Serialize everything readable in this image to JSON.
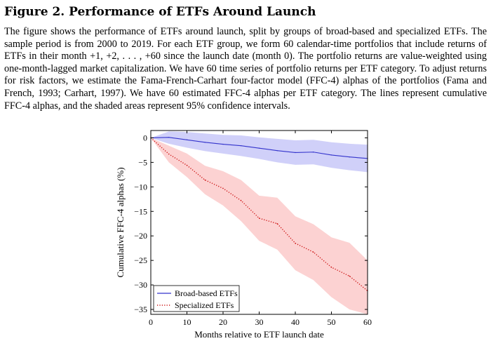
{
  "figure": {
    "title": "Figure 2. Performance of ETFs Around Launch",
    "caption": "The figure shows the performance of ETFs around launch, split by groups of broad-based and specialized ETFs. The sample period is from 2000 to 2019. For each ETF group, we form 60 calendar-time portfolios that include returns of ETFs in their month +1, +2, . . . , +60 since the launch date (month 0). The portfolio returns are value-weighted using one-month-lagged market capitalization. We have 60 time series of portfolio returns per ETF category. To adjust returns for risk factors, we estimate the Fama-French-Carhart four-factor model (FFC-4) alphas of the portfolios (Fama and French, 1993; Carhart, 1997). We have 60 estimated FFC-4 alphas per ETF category. The lines represent cumulative FFC-4 alphas, and the shaded areas represent 95% confidence intervals."
  },
  "chart_data": {
    "type": "line",
    "xlabel": "Months relative to ETF launch date",
    "ylabel": "Cumulative FFC-4 alphas (%)",
    "xlim": [
      0,
      60
    ],
    "ylim": [
      -36,
      1.5
    ],
    "xticks": [
      0,
      10,
      20,
      30,
      40,
      50,
      60
    ],
    "yticks": [
      0,
      -5,
      -10,
      -15,
      -20,
      -25,
      -30,
      -35
    ],
    "legend_position": "bottom-left",
    "x": [
      0,
      5,
      10,
      15,
      20,
      25,
      30,
      35,
      40,
      45,
      50,
      55,
      60
    ],
    "series": [
      {
        "name": "Broad-based ETFs",
        "color": "#3333cc",
        "band_color": "#c8c8f8",
        "style": "solid",
        "values": [
          0,
          0.1,
          -0.4,
          -0.9,
          -1.3,
          -1.6,
          -2.1,
          -2.6,
          -3.0,
          -2.9,
          -3.5,
          -3.9,
          -4.2
        ],
        "ci_lower": [
          0,
          -1.2,
          -2.0,
          -2.7,
          -3.2,
          -3.7,
          -4.3,
          -5.0,
          -5.5,
          -5.4,
          -6.1,
          -6.6,
          -7.0
        ],
        "ci_upper": [
          0,
          1.3,
          1.2,
          0.9,
          0.6,
          0.5,
          0.1,
          -0.2,
          -0.5,
          -0.4,
          -0.9,
          -1.2,
          -1.4
        ]
      },
      {
        "name": "Specialized ETFs",
        "color": "#cc1111",
        "band_color": "#fbcaca",
        "style": "dotted",
        "values": [
          0,
          -3.3,
          -5.6,
          -8.6,
          -10.3,
          -12.8,
          -16.4,
          -17.5,
          -21.5,
          -23.3,
          -26.4,
          -28.2,
          -31.2
        ],
        "ci_lower": [
          0,
          -5.0,
          -8.0,
          -11.5,
          -13.8,
          -17.0,
          -21.0,
          -22.8,
          -27.0,
          -29.0,
          -32.5,
          -35.0,
          -36.0
        ],
        "ci_upper": [
          0,
          -1.6,
          -3.2,
          -5.7,
          -6.8,
          -8.6,
          -11.8,
          -12.2,
          -16.0,
          -17.6,
          -20.3,
          -21.4,
          -25.0
        ]
      }
    ]
  }
}
